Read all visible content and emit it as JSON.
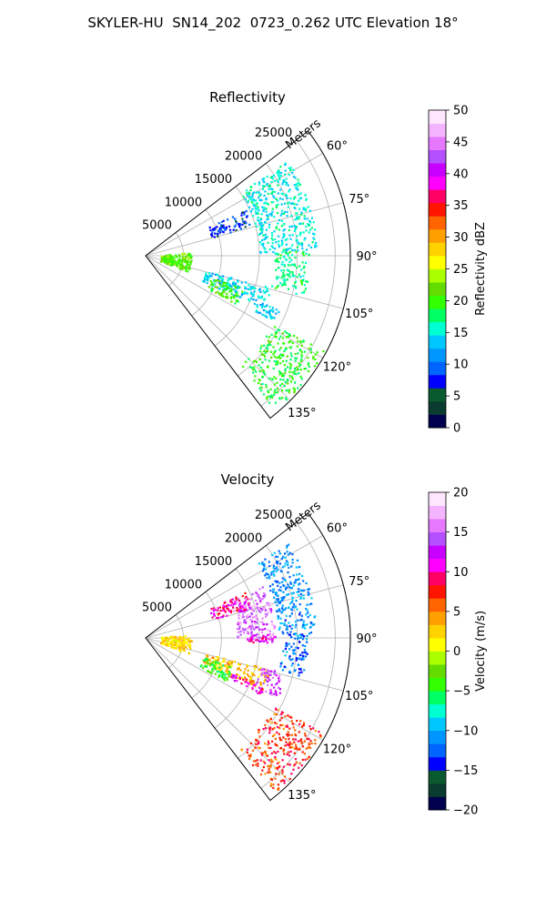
{
  "title": "SKYLER-HU  SN14_202  0723_0.262 UTC Elevation 18°",
  "chart_data": [
    {
      "type": "polar-sector",
      "title": "Reflectivity",
      "radial_label": "Meters",
      "radial_ticks": [
        5000,
        10000,
        15000,
        20000,
        25000
      ],
      "radial_range": [
        0,
        27000
      ],
      "azimuth_range": [
        52.5,
        142.5
      ],
      "azimuth_ticks": [
        "60°",
        "75°",
        "90°",
        "105°",
        "120°",
        "135°"
      ],
      "colorbar": {
        "label": "Reflectivity dBZ",
        "min": 0,
        "max": 50,
        "ticks": [
          "0",
          "5",
          "10",
          "15",
          "20",
          "25",
          "30",
          "35",
          "40",
          "45",
          "50"
        ],
        "colors": [
          "#00004f",
          "#0a3c2f",
          "#0a5a2f",
          "#0000ff",
          "#0064ff",
          "#0096ff",
          "#00c8ff",
          "#00ffd2",
          "#00ff64",
          "#32ff00",
          "#64dc00",
          "#aaff00",
          "#ffff00",
          "#ffd200",
          "#ffa000",
          "#ff6400",
          "#ff1400",
          "#ff0064",
          "#ff00ff",
          "#c800ff",
          "#b450ff",
          "#e678ff",
          "#f5b4ff",
          "#ffe6ff"
        ]
      },
      "echo_regions": [
        {
          "az": [
            56,
            88
          ],
          "r": [
            15000,
            22500
          ],
          "value": 15
        },
        {
          "az": [
            88,
            104
          ],
          "r": [
            17000,
            21500
          ],
          "value": 17
        },
        {
          "az": [
            65,
            74
          ],
          "r": [
            9000,
            14500
          ],
          "value": 8
        },
        {
          "az": [
            104,
            114
          ],
          "r": [
            8000,
            17000
          ],
          "value": 14
        },
        {
          "az": [
            108,
            118
          ],
          "r": [
            9000,
            13500
          ],
          "value": 20
        },
        {
          "az": [
            112,
            117
          ],
          "r": [
            16000,
            19000
          ],
          "value": 13
        },
        {
          "az": [
            118,
            140
          ],
          "r": [
            19000,
            26500
          ],
          "value": 19
        },
        {
          "az": [
            85,
            110
          ],
          "r": [
            2000,
            6000
          ],
          "value": 21
        }
      ]
    },
    {
      "type": "polar-sector",
      "title": "Velocity",
      "radial_label": "Meters",
      "radial_ticks": [
        5000,
        10000,
        15000,
        20000,
        25000
      ],
      "radial_range": [
        0,
        27000
      ],
      "azimuth_range": [
        52.5,
        142.5
      ],
      "azimuth_ticks": [
        "60°",
        "75°",
        "90°",
        "105°",
        "120°",
        "135°"
      ],
      "colorbar": {
        "label": "Velocity (m/s)",
        "min": -20,
        "max": 20,
        "ticks": [
          "−20",
          "−15",
          "−10",
          "−5",
          "0",
          "5",
          "10",
          "15",
          "20"
        ],
        "colors": [
          "#00004f",
          "#0a3c2f",
          "#0a5a2f",
          "#0000ff",
          "#0064ff",
          "#0096ff",
          "#00c8ff",
          "#00ffd2",
          "#00ff64",
          "#32ff00",
          "#64dc00",
          "#aaff00",
          "#ffff00",
          "#ffd200",
          "#ffa000",
          "#ff6400",
          "#ff1400",
          "#ff0064",
          "#ff00ff",
          "#c800ff",
          "#b450ff",
          "#e678ff",
          "#f5b4ff",
          "#ffe6ff"
        ]
      },
      "echo_regions": [
        {
          "az": [
            56,
            88
          ],
          "r": [
            17500,
            22500
          ],
          "value": -11
        },
        {
          "az": [
            66,
            90
          ],
          "r": [
            12000,
            17000
          ],
          "value": 15
        },
        {
          "az": [
            88,
            104
          ],
          "r": [
            18000,
            21500
          ],
          "value": -12
        },
        {
          "az": [
            88,
            92
          ],
          "r": [
            13000,
            17000
          ],
          "value": 11
        },
        {
          "az": [
            65,
            74
          ],
          "r": [
            9000,
            14500
          ],
          "value": 10
        },
        {
          "az": [
            104,
            114
          ],
          "r": [
            8000,
            17000
          ],
          "value": 3
        },
        {
          "az": [
            108,
            118
          ],
          "r": [
            8000,
            12000
          ],
          "value": -4
        },
        {
          "az": [
            112,
            116
          ],
          "r": [
            12000,
            17000
          ],
          "value": 11
        },
        {
          "az": [
            104,
            114
          ],
          "r": [
            15500,
            19000
          ],
          "value": 14
        },
        {
          "az": [
            118,
            140
          ],
          "r": [
            19000,
            26500
          ],
          "value": 7
        },
        {
          "az": [
            85,
            110
          ],
          "r": [
            2000,
            6000
          ],
          "value": 2
        }
      ]
    }
  ]
}
